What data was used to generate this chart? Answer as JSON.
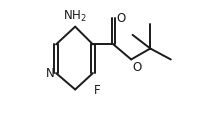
{
  "bg_color": "#ffffff",
  "line_color": "#1a1a1a",
  "line_width": 1.4,
  "font_size": 8.5,
  "xlim": [
    0.0,
    1.05
  ],
  "ylim": [
    0.05,
    1.05
  ]
}
